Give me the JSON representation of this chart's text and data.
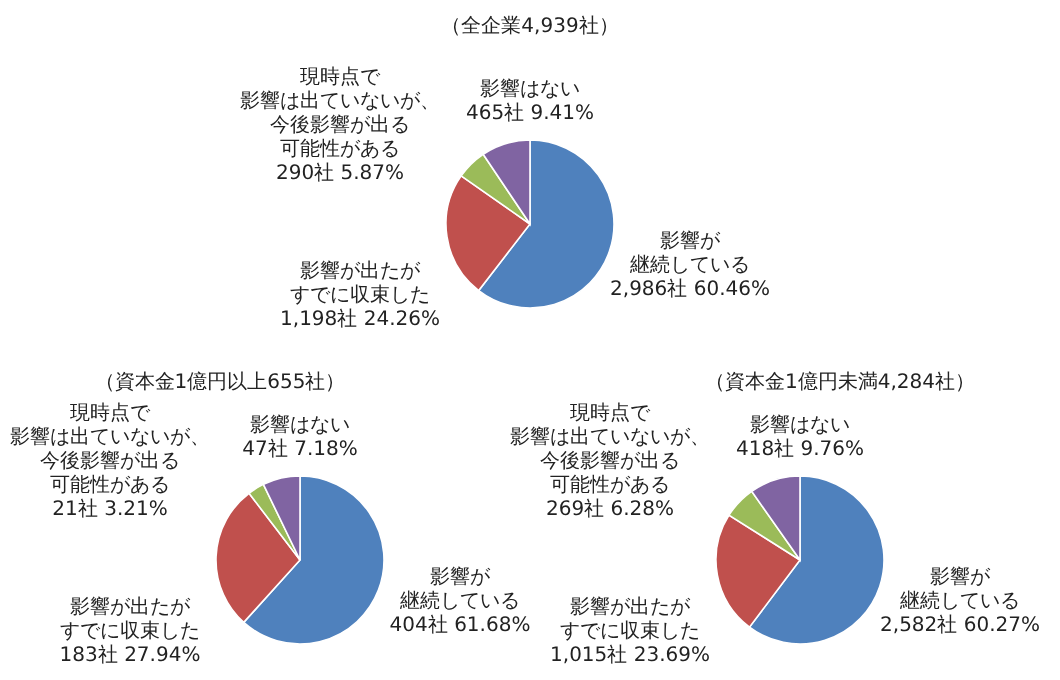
{
  "chart_data": [
    {
      "type": "pie",
      "title": "（全企業4,939社）",
      "categories": [
        "影響が継続している",
        "影響が出たがすでに収束した",
        "現時点で影響は出ていないが、今後影響が出る可能性がある",
        "影響はない"
      ],
      "values": [
        2986,
        1198,
        290,
        465
      ],
      "colors": [
        "#4f81bd",
        "#c0504d",
        "#9bbb59",
        "#8064a2"
      ],
      "value_labels": [
        "2,986社 60.46%",
        "1,198社 24.26%",
        "290社 5.87%",
        "465社 9.41%"
      ]
    },
    {
      "type": "pie",
      "title": "（資本金1億円以上655社）",
      "categories": [
        "影響が継続している",
        "影響が出たがすでに収束した",
        "現時点で影響は出ていないが、今後影響が出る可能性がある",
        "影響はない"
      ],
      "values": [
        404,
        183,
        21,
        47
      ],
      "colors": [
        "#4f81bd",
        "#c0504d",
        "#9bbb59",
        "#8064a2"
      ],
      "value_labels": [
        "404社 61.68%",
        "183社 27.94%",
        "21社 3.21%",
        "47社 7.18%"
      ]
    },
    {
      "type": "pie",
      "title": "（資本金1億円未満4,284社）",
      "categories": [
        "影響が継続している",
        "影響が出たがすでに収束した",
        "現時点で影響は出ていないが、今後影響が出る可能性がある",
        "影響はない"
      ],
      "values": [
        2582,
        1015,
        269,
        418
      ],
      "colors": [
        "#4f81bd",
        "#c0504d",
        "#9bbb59",
        "#8064a2"
      ],
      "value_labels": [
        "2,582社 60.27%",
        "1,015社 23.69%",
        "269社 6.28%",
        "418社 9.76%"
      ]
    }
  ]
}
